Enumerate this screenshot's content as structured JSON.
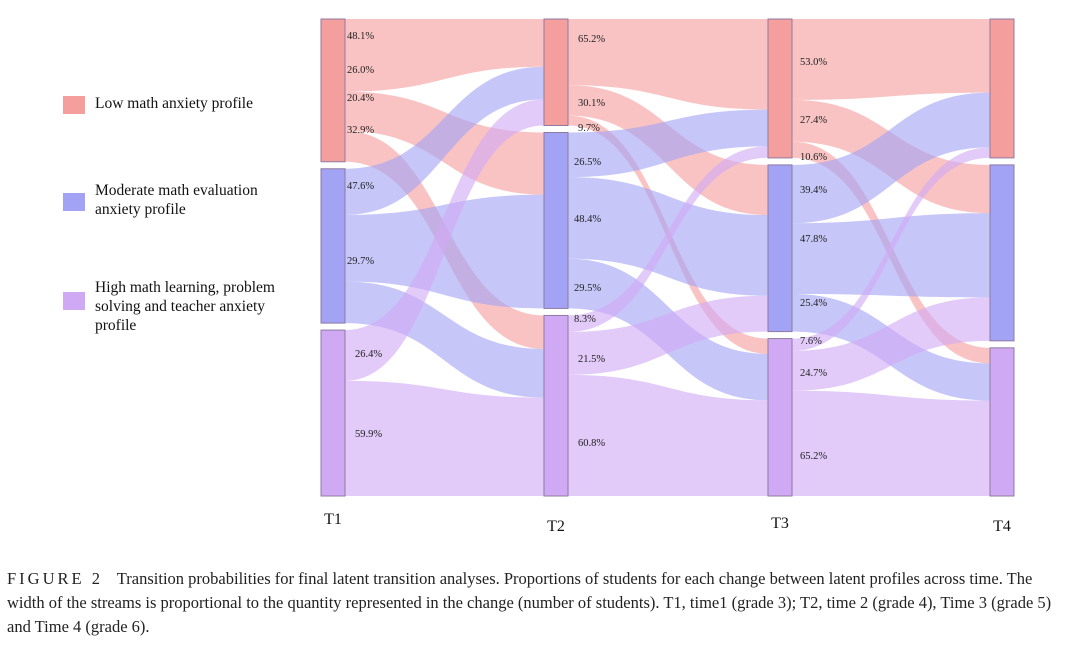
{
  "chart_data": {
    "type": "sankey",
    "times": [
      "T1",
      "T2",
      "T3",
      "T4"
    ],
    "profiles": [
      {
        "name": "Low math anxiety profile",
        "color": "#f59e9e"
      },
      {
        "name": "Moderate math evaluation anxiety profile",
        "color": "#a3a3f5"
      },
      {
        "name": "High math learning, problem solving and teacher anxiety profile",
        "color": "#d0a9f5"
      }
    ],
    "node_proportions": [
      [
        0.37,
        0.4,
        0.43
      ],
      [
        0.23,
        0.38,
        0.39
      ],
      [
        0.3,
        0.36,
        0.34
      ],
      [
        0.3,
        0.38,
        0.32
      ]
    ],
    "transitions": [
      [
        [
          48.1,
          26.0,
          20.4
        ],
        [
          32.9,
          47.6,
          29.7
        ],
        [
          26.4,
          0,
          59.9
        ]
      ],
      [
        [
          65.2,
          30.1,
          9.7
        ],
        [
          26.5,
          48.4,
          29.5
        ],
        [
          8.3,
          21.5,
          60.8
        ]
      ],
      [
        [
          53.0,
          27.4,
          10.6
        ],
        [
          39.4,
          47.8,
          25.4
        ],
        [
          7.6,
          24.7,
          65.2
        ]
      ]
    ],
    "labels": [
      [
        "48.1%",
        "26.0%",
        "20.4%",
        "32.9%",
        "47.6%",
        "29.7%",
        "26.4%",
        "59.9%"
      ],
      [
        "65.2%",
        "30.1%",
        "9.7%",
        "26.5%",
        "48.4%",
        "29.5%",
        "8.3%",
        "21.5%",
        "60.8%"
      ],
      [
        "53.0%",
        "27.4%",
        "10.6%",
        "39.4%",
        "47.8%",
        "25.4%",
        "7.6%",
        "24.7%",
        "65.2%"
      ]
    ]
  },
  "caption": {
    "figure_label": "FIGURE 2",
    "text": "Transition probabilities for final latent transition analyses. Proportions of students for each change between latent profiles across time. The width of the streams is proportional to the quantity represented in the change (number of students). T1, time1 (grade 3); T2, time 2 (grade 4), Time 3 (grade 5) and Time 4 (grade 6)."
  }
}
